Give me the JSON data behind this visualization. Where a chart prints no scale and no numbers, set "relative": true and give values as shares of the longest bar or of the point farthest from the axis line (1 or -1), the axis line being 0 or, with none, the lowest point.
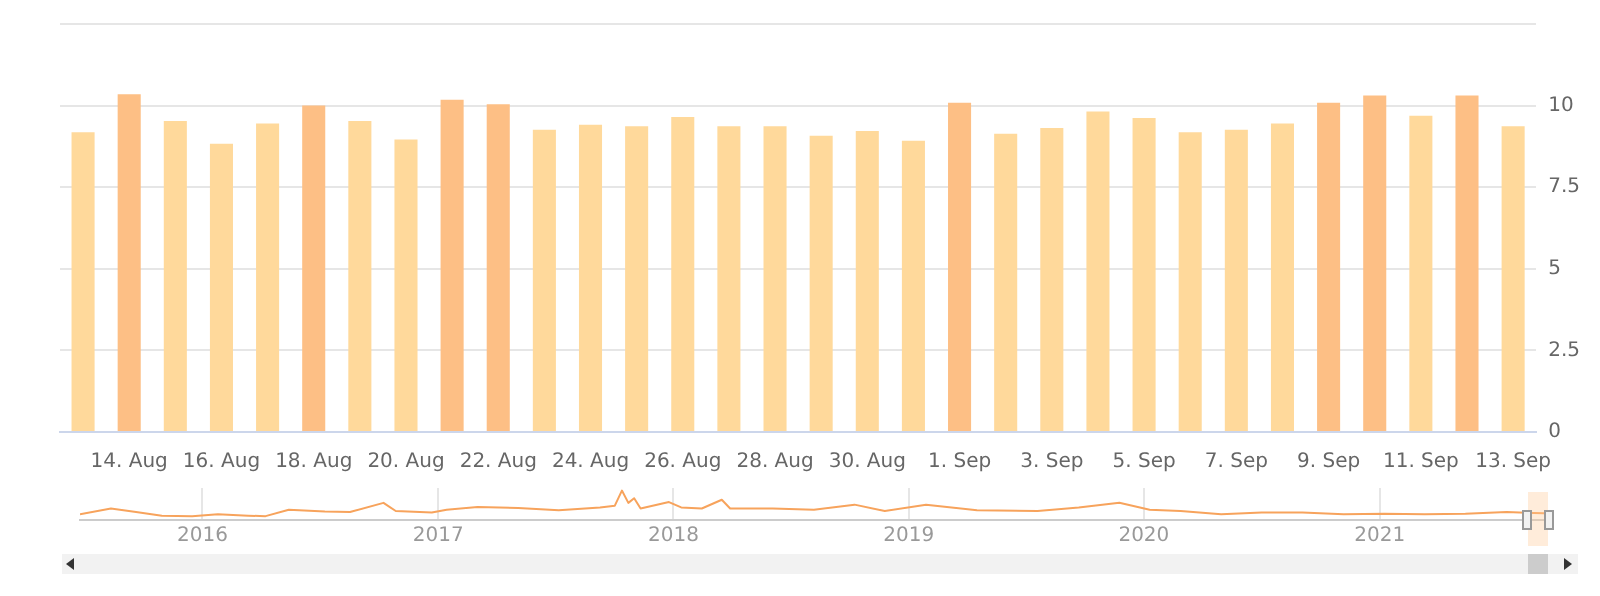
{
  "chart_data": [
    {
      "type": "bar",
      "categories": [
        null,
        "14. Aug",
        null,
        "16. Aug",
        null,
        "18. Aug",
        null,
        "20. Aug",
        null,
        "22. Aug",
        null,
        "24. Aug",
        null,
        "26. Aug",
        null,
        "28. Aug",
        null,
        "30. Aug",
        null,
        "1. Sep",
        null,
        "3. Sep",
        null,
        "5. Sep",
        null,
        "7. Sep",
        null,
        "9. Sep",
        null,
        "11. Sep",
        null,
        "13. Sep"
      ],
      "values": [
        9.18,
        10.35,
        9.53,
        8.83,
        9.45,
        10.0,
        9.53,
        8.96,
        10.18,
        10.04,
        9.26,
        9.41,
        9.37,
        9.65,
        9.37,
        9.37,
        9.08,
        9.22,
        8.92,
        10.09,
        9.14,
        9.31,
        9.82,
        9.62,
        9.18,
        9.26,
        9.45,
        10.09,
        10.31,
        9.69,
        10.31,
        9.37
      ],
      "colors": [
        "#ffd99b",
        "#fdbf85",
        "#ffd99b",
        "#ffd99b",
        "#ffd99b",
        "#fdbf85",
        "#ffd99b",
        "#ffd99b",
        "#fdbf85",
        "#fdbf85",
        "#ffd99b",
        "#ffd99b",
        "#ffd99b",
        "#ffd99b",
        "#ffd99b",
        "#ffd99b",
        "#ffd99b",
        "#ffd99b",
        "#ffd99b",
        "#fdbf85",
        "#ffd99b",
        "#ffd99b",
        "#ffd99b",
        "#ffd99b",
        "#ffd99b",
        "#ffd99b",
        "#ffd99b",
        "#fdbf85",
        "#fdbf85",
        "#ffd99b",
        "#fdbf85",
        "#ffd99b"
      ],
      "ylim": [
        0,
        12.5
      ],
      "yticks": [
        0,
        2.5,
        5,
        7.5,
        10,
        {
          "value": 12.5,
          "label": null
        }
      ],
      "grid": "y",
      "legend": false
    },
    {
      "type": "line",
      "relative": true,
      "color": "#f7a35c",
      "tick_labels": "x",
      "grid": "x",
      "legend": false,
      "marker": "none",
      "xlim": [
        "2015-06-25",
        "2021-09-13"
      ],
      "xticks": [
        "2016",
        "2017",
        "2018",
        "2019",
        "2020",
        "2021"
      ],
      "x": [
        "2015-06-25",
        "2015-08-12",
        "2015-09-20",
        "2015-10-30",
        "2015-12-16",
        "2016-01-25",
        "2016-03-12",
        "2016-04-08",
        "2016-05-14",
        "2016-07-09",
        "2016-08-17",
        "2016-10-08",
        "2016-10-27",
        "2016-12-22",
        "2017-01-14",
        "2017-03-03",
        "2017-05-05",
        "2017-07-07",
        "2017-09-09",
        "2017-10-02",
        "2017-10-13",
        "2017-10-23",
        "2017-11-01",
        "2017-11-11",
        "2017-12-25",
        "2018-01-13",
        "2018-02-14",
        "2018-03-17",
        "2018-03-30",
        "2018-06-04",
        "2018-08-07",
        "2018-10-09",
        "2018-11-25",
        "2019-01-28",
        "2019-04-17",
        "2019-07-20",
        "2019-09-22",
        "2019-11-24",
        "2020-01-10",
        "2020-02-27",
        "2020-04-30",
        "2020-07-02",
        "2020-09-03",
        "2020-11-06",
        "2021-01-08",
        "2021-03-12",
        "2021-05-14",
        "2021-07-17",
        "2021-09-13"
      ],
      "values": [
        0.07,
        0.3,
        0.16,
        0.02,
        0,
        0.07,
        0.02,
        0,
        0.25,
        0.18,
        0.16,
        0.52,
        0.2,
        0.14,
        0.25,
        0.36,
        0.32,
        0.23,
        0.34,
        0.41,
        1,
        0.52,
        0.7,
        0.3,
        0.55,
        0.34,
        0.3,
        0.64,
        0.3,
        0.3,
        0.25,
        0.45,
        0.2,
        0.45,
        0.23,
        0.2,
        0.34,
        0.52,
        0.25,
        0.2,
        0.07,
        0.14,
        0.14,
        0.07,
        0.09,
        0.07,
        0.09,
        0.16,
        0.11
      ]
    }
  ]
}
